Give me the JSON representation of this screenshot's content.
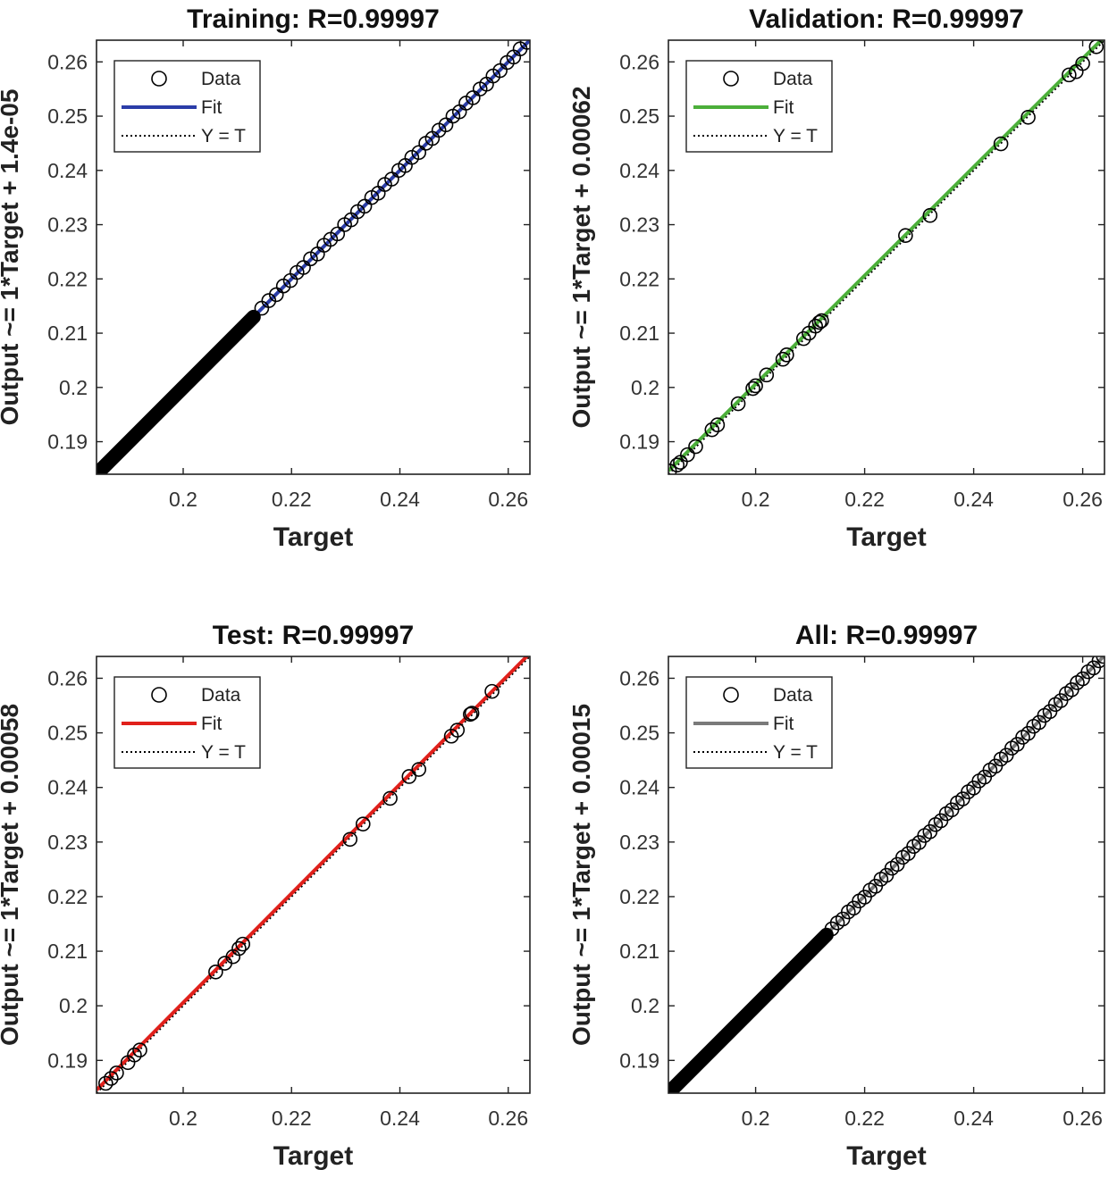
{
  "chart_data": [
    {
      "type": "scatter",
      "title": "Training: R=0.99997",
      "xlabel": "Target",
      "ylabel": "Output ~= 1*Target + 1.4e-05",
      "xlim": [
        0.184,
        0.264
      ],
      "ylim": [
        0.184,
        0.264
      ],
      "xticks": [
        0.2,
        0.22,
        0.24,
        0.26
      ],
      "yticks": [
        0.19,
        0.2,
        0.21,
        0.22,
        0.23,
        0.24,
        0.25,
        0.26
      ],
      "xtick_labels": [
        "0.2",
        "0.22",
        "0.24",
        "0.26"
      ],
      "ytick_labels": [
        "0.19",
        "0.2",
        "0.21",
        "0.22",
        "0.23",
        "0.24",
        "0.25",
        "0.26"
      ],
      "grid": false,
      "legend_position": "top-left",
      "legend": [
        "Data",
        "Fit",
        "Y = T"
      ],
      "fit": {
        "slope": 1,
        "intercept": 1.4e-05,
        "color": "#2b3da8"
      },
      "marker_color": "#000000",
      "dense_range": [
        0.184,
        0.213
      ],
      "points": [
        [
          0.2145,
          0.2146
        ],
        [
          0.2158,
          0.216
        ],
        [
          0.2172,
          0.2171
        ],
        [
          0.2185,
          0.2187
        ],
        [
          0.2198,
          0.2197
        ],
        [
          0.221,
          0.2212
        ],
        [
          0.2222,
          0.2221
        ],
        [
          0.2235,
          0.2237
        ],
        [
          0.2248,
          0.2246
        ],
        [
          0.226,
          0.2262
        ],
        [
          0.2272,
          0.2273
        ],
        [
          0.2285,
          0.2283
        ],
        [
          0.2298,
          0.23
        ],
        [
          0.231,
          0.2309
        ],
        [
          0.2322,
          0.2324
        ],
        [
          0.2335,
          0.2334
        ],
        [
          0.2348,
          0.235
        ],
        [
          0.236,
          0.2358
        ],
        [
          0.2372,
          0.2374
        ],
        [
          0.2385,
          0.2384
        ],
        [
          0.2398,
          0.24
        ],
        [
          0.241,
          0.2409
        ],
        [
          0.2422,
          0.2424
        ],
        [
          0.2435,
          0.2433
        ],
        [
          0.2448,
          0.245
        ],
        [
          0.246,
          0.2459
        ],
        [
          0.2472,
          0.2474
        ],
        [
          0.2485,
          0.2484
        ],
        [
          0.2498,
          0.25
        ],
        [
          0.251,
          0.2508
        ],
        [
          0.2522,
          0.2524
        ],
        [
          0.2535,
          0.2534
        ],
        [
          0.2548,
          0.255
        ],
        [
          0.256,
          0.2559
        ],
        [
          0.2572,
          0.2574
        ],
        [
          0.2585,
          0.2584
        ],
        [
          0.2598,
          0.2599
        ],
        [
          0.261,
          0.2609
        ],
        [
          0.2622,
          0.2624
        ],
        [
          0.2635,
          0.2636
        ]
      ]
    },
    {
      "type": "scatter",
      "title": "Validation: R=0.99997",
      "xlabel": "Target",
      "ylabel": "Output ~= 1*Target + 0.00062",
      "xlim": [
        0.184,
        0.264
      ],
      "ylim": [
        0.184,
        0.264
      ],
      "xticks": [
        0.2,
        0.22,
        0.24,
        0.26
      ],
      "yticks": [
        0.19,
        0.2,
        0.21,
        0.22,
        0.23,
        0.24,
        0.25,
        0.26
      ],
      "xtick_labels": [
        "0.2",
        "0.22",
        "0.24",
        "0.26"
      ],
      "ytick_labels": [
        "0.19",
        "0.2",
        "0.21",
        "0.22",
        "0.23",
        "0.24",
        "0.25",
        "0.26"
      ],
      "grid": false,
      "legend_position": "top-left",
      "legend": [
        "Data",
        "Fit",
        "Y = T"
      ],
      "fit": {
        "slope": 1,
        "intercept": 0.00062,
        "color": "#4caf3a"
      },
      "marker_color": "#000000",
      "dense_range": null,
      "points": [
        [
          0.1842,
          0.1846
        ],
        [
          0.1856,
          0.1857
        ],
        [
          0.1862,
          0.1862
        ],
        [
          0.1875,
          0.1876
        ],
        [
          0.189,
          0.1891
        ],
        [
          0.192,
          0.1922
        ],
        [
          0.193,
          0.1931
        ],
        [
          0.1968,
          0.197
        ],
        [
          0.1995,
          0.1998
        ],
        [
          0.2,
          0.2003
        ],
        [
          0.202,
          0.2023
        ],
        [
          0.205,
          0.2052
        ],
        [
          0.2057,
          0.206
        ],
        [
          0.2088,
          0.209
        ],
        [
          0.2098,
          0.21
        ],
        [
          0.211,
          0.2113
        ],
        [
          0.2117,
          0.212
        ],
        [
          0.2121,
          0.2123
        ],
        [
          0.2275,
          0.228
        ],
        [
          0.232,
          0.2317
        ],
        [
          0.245,
          0.2449
        ],
        [
          0.25,
          0.2498
        ],
        [
          0.2575,
          0.2576
        ],
        [
          0.2588,
          0.2582
        ],
        [
          0.26,
          0.2597
        ],
        [
          0.2625,
          0.2628
        ]
      ]
    },
    {
      "type": "scatter",
      "title": "Test: R=0.99997",
      "xlabel": "Target",
      "ylabel": "Output ~= 1*Target + 0.00058",
      "xlim": [
        0.184,
        0.264
      ],
      "ylim": [
        0.184,
        0.264
      ],
      "xticks": [
        0.2,
        0.22,
        0.24,
        0.26
      ],
      "yticks": [
        0.19,
        0.2,
        0.21,
        0.22,
        0.23,
        0.24,
        0.25,
        0.26
      ],
      "xtick_labels": [
        "0.2",
        "0.22",
        "0.24",
        "0.26"
      ],
      "ytick_labels": [
        "0.19",
        "0.2",
        "0.21",
        "0.22",
        "0.23",
        "0.24",
        "0.25",
        "0.26"
      ],
      "grid": false,
      "legend_position": "top-left",
      "legend": [
        "Data",
        "Fit",
        "Y = T"
      ],
      "fit": {
        "slope": 1,
        "intercept": 0.00058,
        "color": "#e0201b"
      },
      "marker_color": "#000000",
      "dense_range": null,
      "points": [
        [
          0.1857,
          0.1858
        ],
        [
          0.1867,
          0.1867
        ],
        [
          0.1877,
          0.1877
        ],
        [
          0.1898,
          0.1896
        ],
        [
          0.191,
          0.191
        ],
        [
          0.192,
          0.1919
        ],
        [
          0.206,
          0.2062
        ],
        [
          0.2077,
          0.2078
        ],
        [
          0.2092,
          0.209
        ],
        [
          0.2103,
          0.2105
        ],
        [
          0.211,
          0.2113
        ],
        [
          0.2308,
          0.2305
        ],
        [
          0.2332,
          0.2333
        ],
        [
          0.2382,
          0.238
        ],
        [
          0.2417,
          0.242
        ],
        [
          0.2435,
          0.2433
        ],
        [
          0.2495,
          0.2494
        ],
        [
          0.2506,
          0.2505
        ],
        [
          0.253,
          0.2534
        ],
        [
          0.2533,
          0.2536
        ],
        [
          0.257,
          0.2576
        ]
      ]
    },
    {
      "type": "scatter",
      "title": "All: R=0.99997",
      "xlabel": "Target",
      "ylabel": "Output ~= 1*Target + 0.00015",
      "xlim": [
        0.184,
        0.264
      ],
      "ylim": [
        0.184,
        0.264
      ],
      "xticks": [
        0.2,
        0.22,
        0.24,
        0.26
      ],
      "yticks": [
        0.19,
        0.2,
        0.21,
        0.22,
        0.23,
        0.24,
        0.25,
        0.26
      ],
      "xtick_labels": [
        "0.2",
        "0.22",
        "0.24",
        "0.26"
      ],
      "ytick_labels": [
        "0.19",
        "0.2",
        "0.21",
        "0.22",
        "0.23",
        "0.24",
        "0.25",
        "0.26"
      ],
      "grid": false,
      "legend_position": "top-left",
      "legend": [
        "Data",
        "Fit",
        "Y = T"
      ],
      "fit": {
        "slope": 1,
        "intercept": 0.00015,
        "color": "#7a7a7a"
      },
      "marker_color": "#000000",
      "dense_range": [
        0.184,
        0.213
      ],
      "points": [
        [
          0.214,
          0.2141
        ],
        [
          0.215,
          0.2152
        ],
        [
          0.216,
          0.2159
        ],
        [
          0.217,
          0.2172
        ],
        [
          0.218,
          0.2179
        ],
        [
          0.219,
          0.2192
        ],
        [
          0.22,
          0.2199
        ],
        [
          0.221,
          0.2212
        ],
        [
          0.222,
          0.2219
        ],
        [
          0.223,
          0.2232
        ],
        [
          0.224,
          0.2239
        ],
        [
          0.225,
          0.2252
        ],
        [
          0.226,
          0.2259
        ],
        [
          0.227,
          0.2272
        ],
        [
          0.228,
          0.2279
        ],
        [
          0.229,
          0.2292
        ],
        [
          0.23,
          0.2299
        ],
        [
          0.231,
          0.2312
        ],
        [
          0.232,
          0.2319
        ],
        [
          0.233,
          0.2332
        ],
        [
          0.234,
          0.2339
        ],
        [
          0.235,
          0.2352
        ],
        [
          0.236,
          0.2359
        ],
        [
          0.237,
          0.2372
        ],
        [
          0.238,
          0.2379
        ],
        [
          0.239,
          0.2392
        ],
        [
          0.24,
          0.2399
        ],
        [
          0.241,
          0.2412
        ],
        [
          0.242,
          0.2419
        ],
        [
          0.243,
          0.2432
        ],
        [
          0.244,
          0.2439
        ],
        [
          0.245,
          0.2452
        ],
        [
          0.246,
          0.2459
        ],
        [
          0.247,
          0.2472
        ],
        [
          0.248,
          0.2479
        ],
        [
          0.249,
          0.2492
        ],
        [
          0.25,
          0.2499
        ],
        [
          0.251,
          0.2512
        ],
        [
          0.252,
          0.2519
        ],
        [
          0.253,
          0.2532
        ],
        [
          0.254,
          0.2539
        ],
        [
          0.255,
          0.2552
        ],
        [
          0.256,
          0.2559
        ],
        [
          0.257,
          0.2572
        ],
        [
          0.258,
          0.2579
        ],
        [
          0.259,
          0.2592
        ],
        [
          0.26,
          0.2599
        ],
        [
          0.261,
          0.2612
        ],
        [
          0.262,
          0.2619
        ],
        [
          0.263,
          0.2632
        ],
        [
          0.2638,
          0.264
        ]
      ]
    }
  ]
}
